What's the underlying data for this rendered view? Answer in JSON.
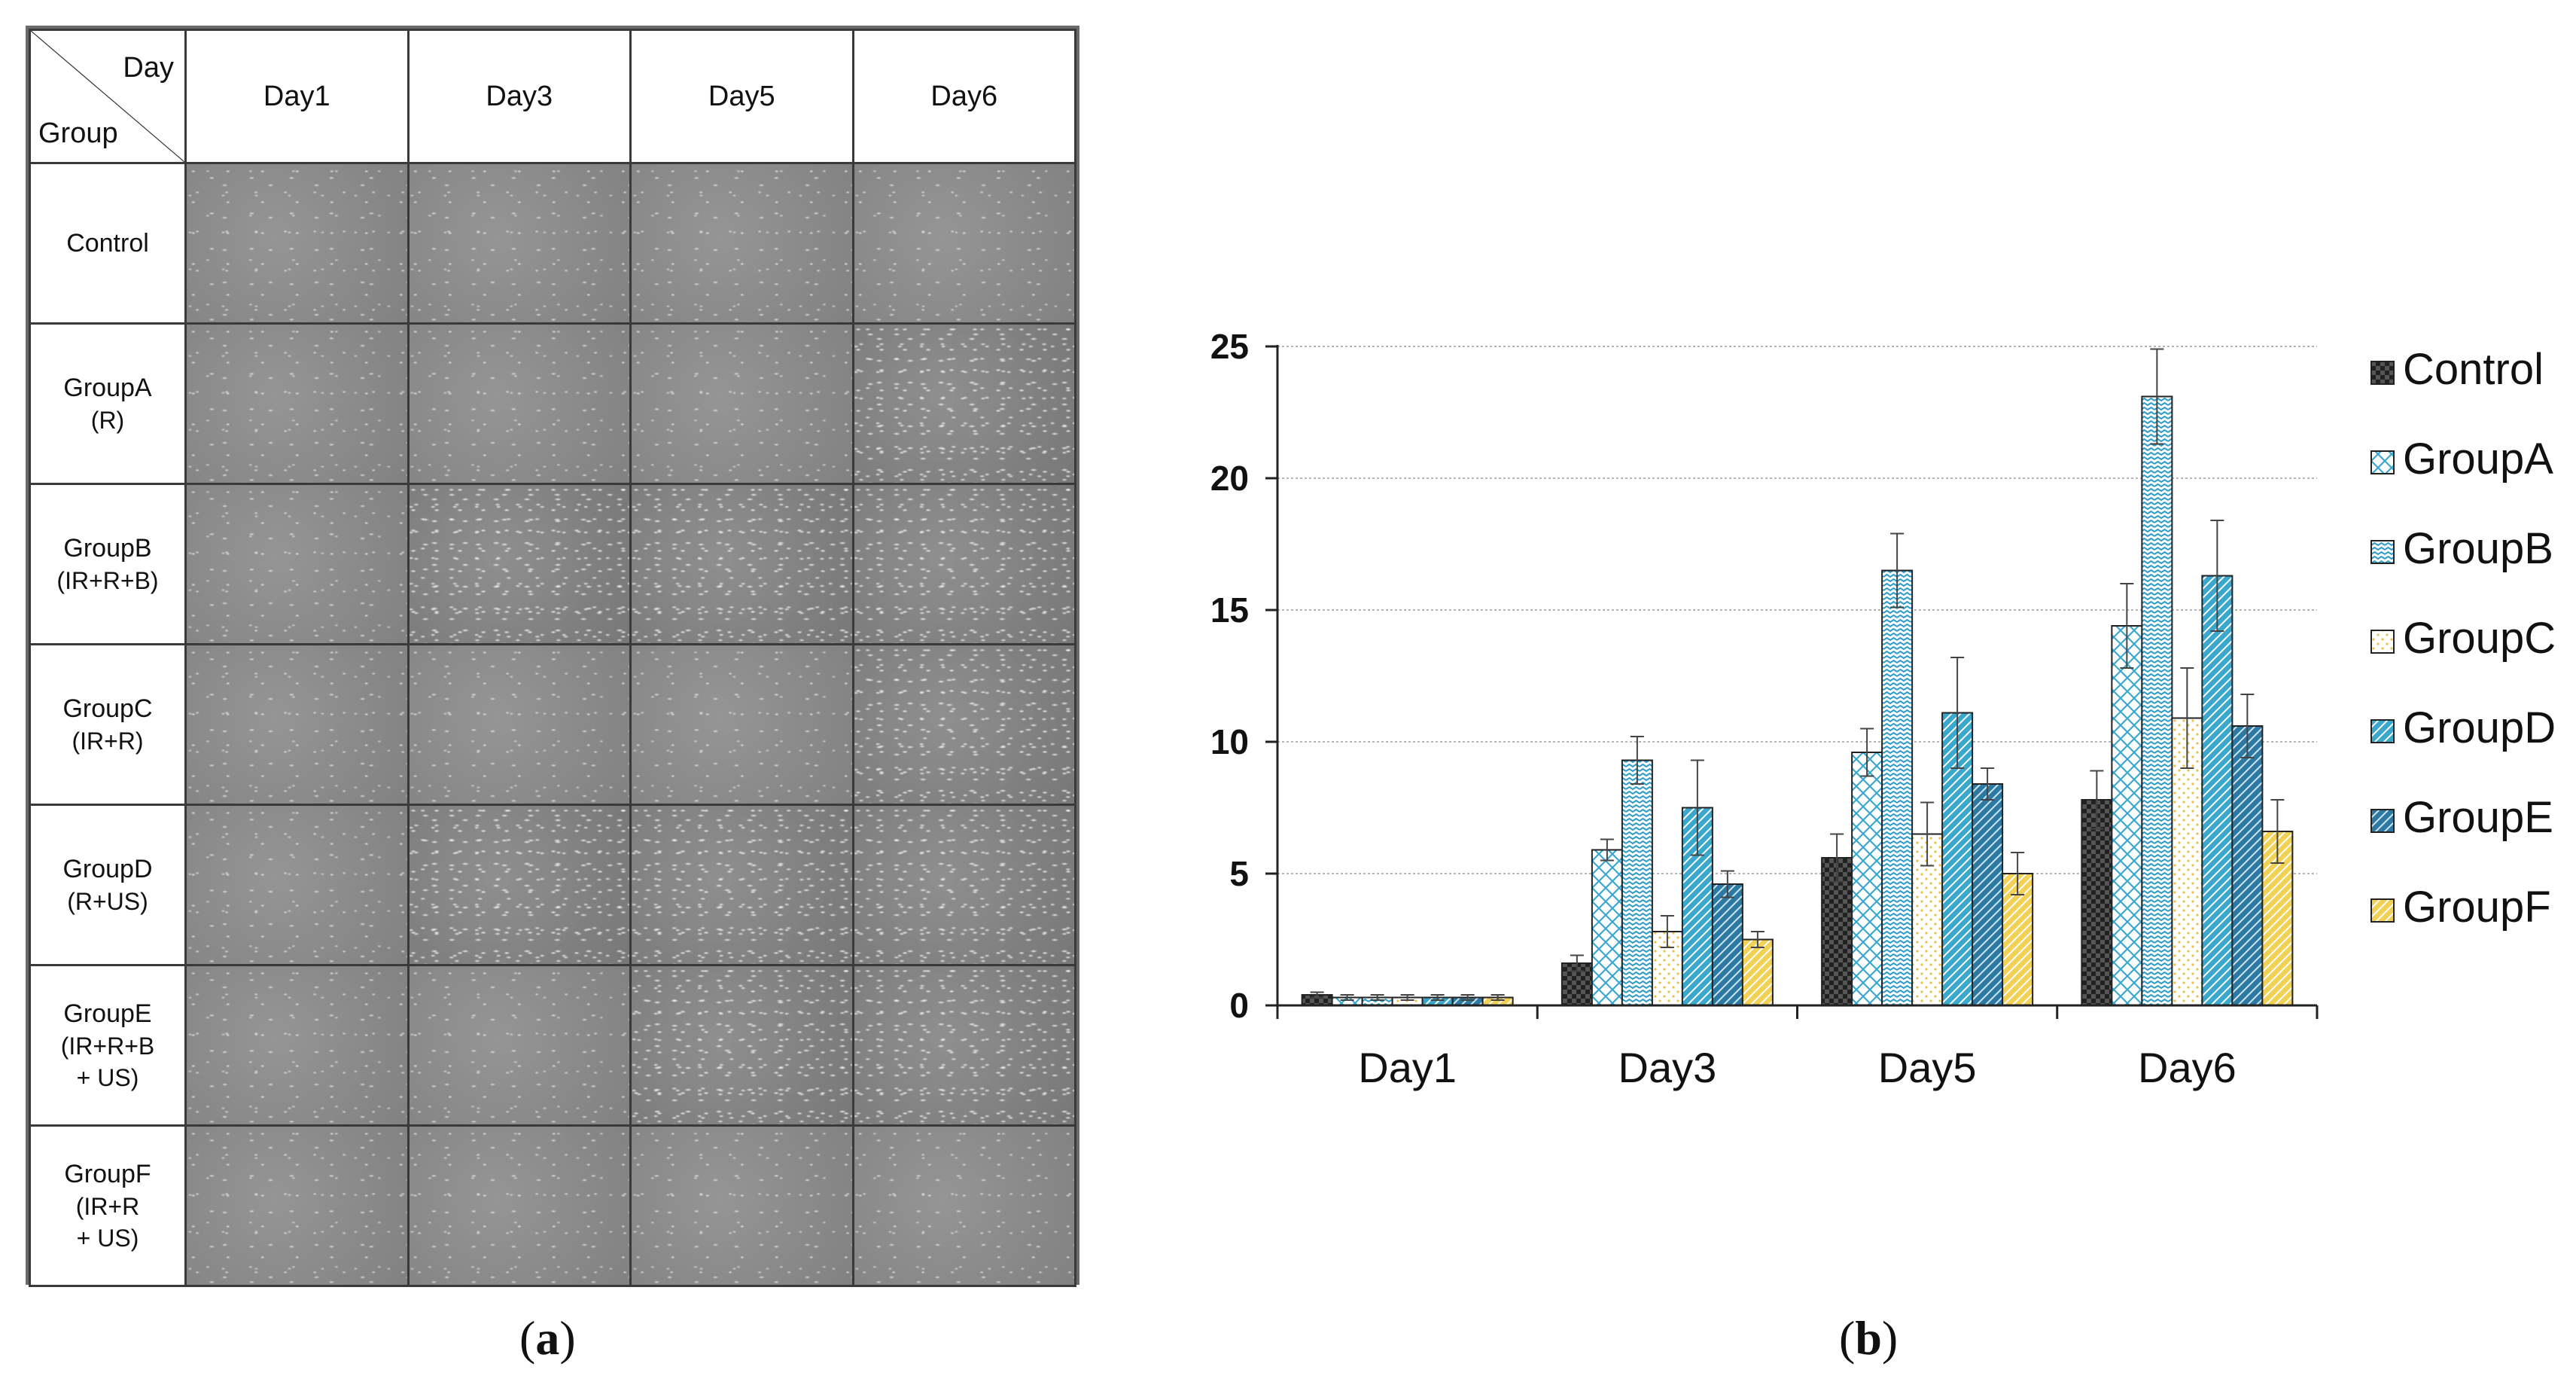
{
  "panel_a": {
    "corner_top": "Day",
    "corner_bottom": "Group",
    "columns": [
      "Day1",
      "Day3",
      "Day5",
      "Day6"
    ],
    "rows": [
      {
        "name": "Control",
        "sub": ""
      },
      {
        "name": "GroupA",
        "sub": "(R)"
      },
      {
        "name": "GroupB",
        "sub": "(IR+R+B)"
      },
      {
        "name": "GroupC",
        "sub": "(IR+R)"
      },
      {
        "name": "GroupD",
        "sub": "(R+US)"
      },
      {
        "name": "GroupE",
        "sub": "(IR+R+B\n+ US)"
      },
      {
        "name": "GroupF",
        "sub": "(IR+R\n+ US)"
      }
    ]
  },
  "captions": {
    "a": {
      "open": "(",
      "letter": "a",
      "close": ")"
    },
    "b": {
      "open": "(",
      "letter": "b",
      "close": ")"
    }
  },
  "chart_data": {
    "type": "bar",
    "title": "",
    "xlabel": "",
    "ylabel": "",
    "categories": [
      "Day1",
      "Day3",
      "Day5",
      "Day6"
    ],
    "ylim": [
      0,
      25
    ],
    "yticks": [
      0,
      5,
      10,
      15,
      20,
      25
    ],
    "grid": true,
    "legend_position": "right",
    "series": [
      {
        "name": "Control",
        "values": [
          0.4,
          1.6,
          5.6,
          7.8
        ],
        "errors": [
          0.1,
          0.3,
          0.9,
          1.1
        ],
        "color": "#3a3a3a",
        "pattern": "checker-dark"
      },
      {
        "name": "GroupA",
        "values": [
          0.3,
          5.9,
          9.6,
          14.4
        ],
        "errors": [
          0.1,
          0.4,
          0.9,
          1.6
        ],
        "color": "#4bb3d4",
        "pattern": "diamond-blue"
      },
      {
        "name": "GroupB",
        "values": [
          0.3,
          9.3,
          16.5,
          23.1
        ],
        "errors": [
          0.1,
          0.9,
          1.4,
          1.8
        ],
        "color": "#3aa7cc",
        "pattern": "wave-blue"
      },
      {
        "name": "GroupC",
        "values": [
          0.3,
          2.8,
          6.5,
          10.9
        ],
        "errors": [
          0.1,
          0.6,
          1.2,
          1.9
        ],
        "color": "#f0d060",
        "pattern": "dots-yellow"
      },
      {
        "name": "GroupD",
        "values": [
          0.3,
          7.5,
          11.1,
          16.3
        ],
        "errors": [
          0.1,
          1.8,
          2.1,
          2.1
        ],
        "color": "#37a2c8",
        "pattern": "diag-blue"
      },
      {
        "name": "GroupE",
        "values": [
          0.3,
          4.6,
          8.4,
          10.6
        ],
        "errors": [
          0.1,
          0.5,
          0.6,
          1.2
        ],
        "color": "#2d7ea6",
        "pattern": "diag-darkblue"
      },
      {
        "name": "GroupF",
        "values": [
          0.3,
          2.5,
          5.0,
          6.6
        ],
        "errors": [
          0.1,
          0.3,
          0.8,
          1.2
        ],
        "color": "#f0cd45",
        "pattern": "diag-yellow"
      }
    ]
  }
}
